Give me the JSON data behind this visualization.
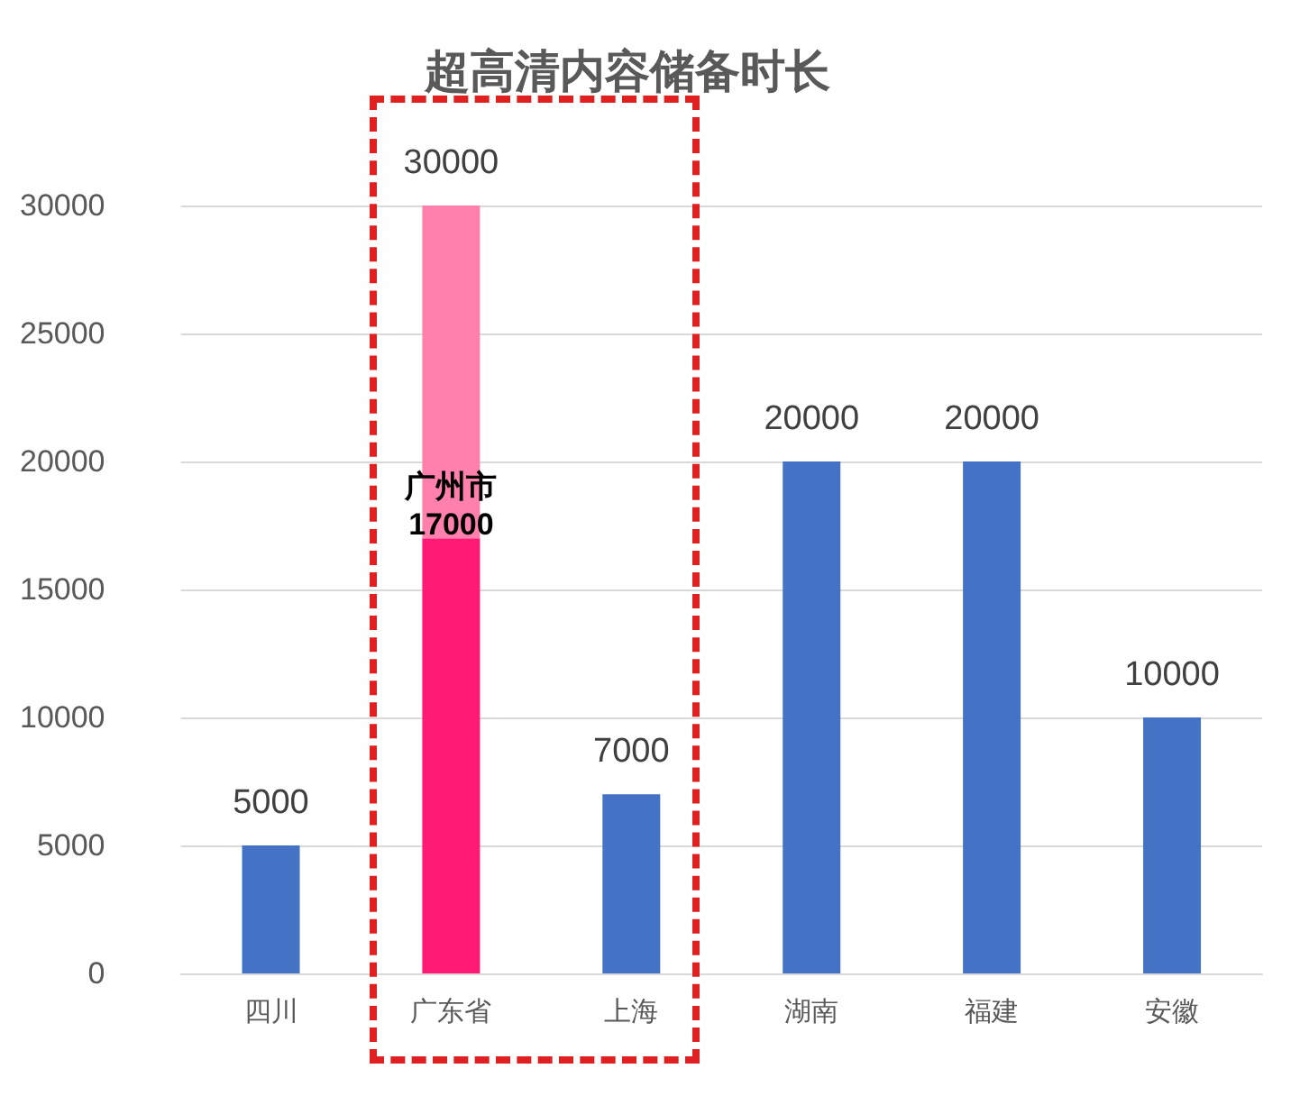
{
  "chart_data": {
    "type": "bar",
    "title": "超高清内容储备时长",
    "categories": [
      "四川",
      "广东省",
      "上海",
      "湖南",
      "福建",
      "安徽"
    ],
    "stacked": true,
    "series": [
      {
        "values": [
          5000,
          17000,
          7000,
          20000,
          20000,
          10000
        ],
        "colors": [
          "#4472c4",
          "#ff1a75",
          "#4472c4",
          "#4472c4",
          "#4472c4",
          "#4472c4"
        ],
        "value_labels": [
          null,
          "广州市\n17000",
          null,
          null,
          null,
          null
        ]
      },
      {
        "values": [
          null,
          13000,
          null,
          null,
          null,
          null
        ],
        "color": "#ff80ad"
      }
    ],
    "totals": [
      "5000",
      "30000",
      "7000",
      "20000",
      "20000",
      "10000"
    ],
    "ylim": [
      0,
      30000
    ],
    "yticks": [
      0,
      5000,
      10000,
      15000,
      20000,
      25000,
      30000
    ],
    "grid": "y"
  }
}
